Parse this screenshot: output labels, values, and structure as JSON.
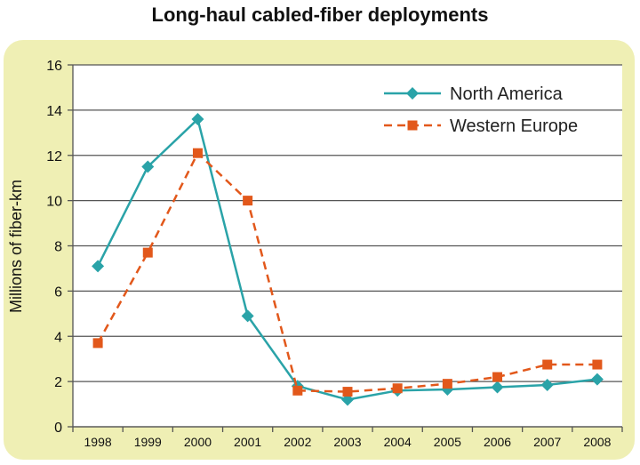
{
  "colors": {
    "panel_background": "#efefb4",
    "plot_background": "#ffffff",
    "grid": "#555555",
    "north_america": "#2aa3a8",
    "western_europe": "#e2581b"
  },
  "chart_data": {
    "type": "line",
    "title": "Long-haul cabled-fiber deployments",
    "xlabel": "",
    "ylabel": "Millions of fiber-km",
    "x": [
      "1998",
      "1999",
      "2000",
      "2001",
      "2002",
      "2003",
      "2004",
      "2005",
      "2006",
      "2007",
      "2008"
    ],
    "ylim": [
      0,
      16
    ],
    "yticks": [
      "0",
      "2",
      "4",
      "6",
      "8",
      "10",
      "12",
      "14",
      "16"
    ],
    "grid": true,
    "legend_position": "top-right",
    "series": [
      {
        "name": "North America",
        "marker": "diamond",
        "line_style": "solid",
        "values": [
          7.1,
          11.5,
          13.6,
          4.9,
          1.8,
          1.2,
          1.6,
          1.65,
          1.75,
          1.85,
          2.1
        ]
      },
      {
        "name": "Western Europe",
        "marker": "square",
        "line_style": "dashed",
        "values": [
          3.7,
          7.7,
          12.1,
          10.0,
          1.6,
          1.55,
          1.7,
          1.9,
          2.2,
          2.75,
          2.75
        ]
      }
    ]
  }
}
